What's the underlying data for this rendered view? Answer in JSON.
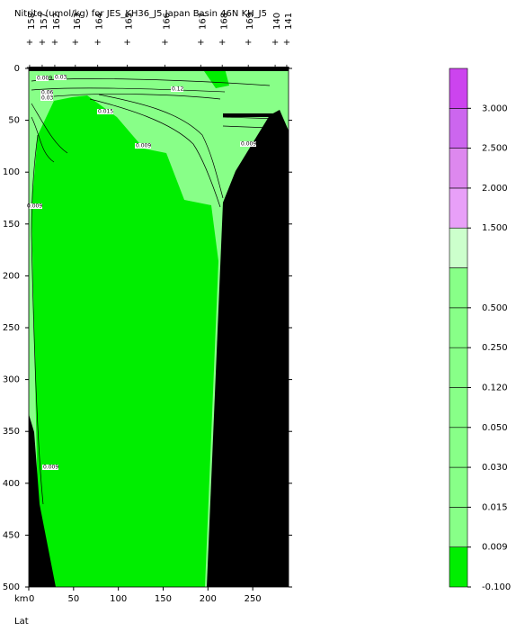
{
  "chart_data": {
    "type": "section",
    "title": "Nitrite (umol/kg) for JES_KH36_J5 Japan Basin 46N KH_J5",
    "x_axis_label": "km",
    "x2_axis_label": "Lat",
    "xlim": [
      0,
      290
    ],
    "xticks": [
      0,
      50,
      100,
      150,
      200,
      250
    ],
    "ylim": [
      0,
      500
    ],
    "yticks": [
      0,
      50,
      100,
      150,
      200,
      250,
      300,
      350,
      400,
      450,
      500
    ],
    "stations": {
      "x": [
        1,
        15,
        29,
        52,
        77,
        110,
        152,
        192,
        216,
        245,
        275,
        288
      ],
      "labels": [
        "158",
        "157",
        "162",
        "163",
        "164",
        "165",
        "166",
        "167",
        "168",
        "169",
        "140",
        "141"
      ]
    },
    "contour_labels": [
      "0.009",
      "0.03",
      "0.06",
      "0.03",
      "0.12",
      "0.015",
      "0.009",
      "0.009",
      "0.009",
      "0.009"
    ],
    "colorbar": {
      "levels": [
        "-0.100",
        "0.009",
        "0.015",
        "0.030",
        "0.050",
        "0.120",
        "0.250",
        "0.500",
        null,
        "1.500",
        "2.000",
        "2.500",
        "3.000",
        null
      ],
      "colors": [
        "#00ee00",
        "#88ff88",
        "#88ff88",
        "#88ff88",
        "#88ff88",
        "#88ff88",
        "#88ff88",
        "#88ff88",
        "#ccffcc",
        "#e8a0f8",
        "#dd88ee",
        "#cc66ee",
        "#cc44ee"
      ]
    }
  }
}
